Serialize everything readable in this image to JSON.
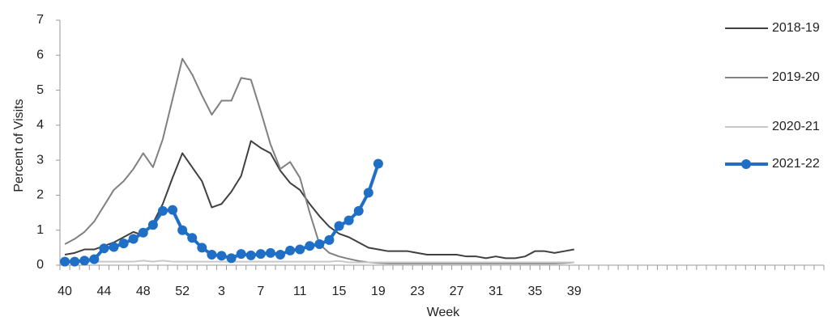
{
  "chart_data": {
    "type": "line",
    "ylabel": "Percent of Visits",
    "xlabel": "Week",
    "categories": [
      "40",
      null,
      null,
      null,
      "44",
      null,
      null,
      null,
      "48",
      null,
      null,
      null,
      "52",
      null,
      null,
      null,
      "3",
      null,
      null,
      null,
      "7",
      null,
      null,
      null,
      "11",
      null,
      null,
      null,
      "15",
      null,
      null,
      null,
      "19",
      null,
      null,
      null,
      "23",
      null,
      null,
      null,
      "27",
      null,
      null,
      null,
      "31",
      null,
      null,
      null,
      "35",
      null,
      null,
      null,
      "39",
      null,
      null,
      null,
      null,
      null,
      null,
      null,
      null,
      null,
      null,
      null,
      null,
      null,
      null,
      null,
      null,
      null,
      null,
      null,
      null,
      null,
      null,
      null,
      null,
      null
    ],
    "ylim": [
      0,
      7
    ],
    "yticks": [
      0,
      1,
      2,
      3,
      4,
      5,
      6,
      7
    ],
    "legend": "right",
    "series": [
      {
        "name": "2018-19",
        "color": "#404040",
        "marker": false,
        "values": [
          0.3,
          0.35,
          0.45,
          0.45,
          0.55,
          0.65,
          0.8,
          0.95,
          0.85,
          1.2,
          1.75,
          2.5,
          3.2,
          2.8,
          2.4,
          1.65,
          1.75,
          2.1,
          2.55,
          3.55,
          3.35,
          3.2,
          2.7,
          2.35,
          2.15,
          1.75,
          1.4,
          1.1,
          0.9,
          0.8,
          0.65,
          0.5,
          0.45,
          0.4,
          0.4,
          0.4,
          0.35,
          0.3,
          0.3,
          0.3,
          0.3,
          0.25,
          0.25,
          0.2,
          0.25,
          0.2,
          0.2,
          0.25,
          0.4,
          0.4,
          0.35,
          0.4,
          0.45,
          null,
          null,
          null,
          null,
          null,
          null,
          null,
          null,
          null,
          null,
          null,
          null,
          null,
          null,
          null,
          null,
          null,
          null,
          null,
          null,
          null,
          null,
          null,
          null,
          null
        ]
      },
      {
        "name": "2019-20",
        "color": "#808080",
        "marker": false,
        "values": [
          0.6,
          0.75,
          0.95,
          1.25,
          1.7,
          2.15,
          2.4,
          2.75,
          3.2,
          2.8,
          3.6,
          4.75,
          5.9,
          5.45,
          4.85,
          4.3,
          4.7,
          4.7,
          5.35,
          5.3,
          4.4,
          3.45,
          2.75,
          2.95,
          2.5,
          1.5,
          0.6,
          0.35,
          0.25,
          0.18,
          0.12,
          0.08,
          0.06,
          0.05,
          0.05,
          0.05,
          0.05,
          0.05,
          0.05,
          0.05,
          0.05,
          0.05,
          0.05,
          0.05,
          0.05,
          0.05,
          0.05,
          0.05,
          0.05,
          0.05,
          0.05,
          0.06,
          0.08,
          null,
          null,
          null,
          null,
          null,
          null,
          null,
          null,
          null,
          null,
          null,
          null,
          null,
          null,
          null,
          null,
          null,
          null,
          null,
          null,
          null,
          null,
          null,
          null,
          null
        ]
      },
      {
        "name": "2020-21",
        "color": "#c8c8c8",
        "marker": false,
        "values": [
          0.1,
          0.1,
          0.1,
          0.1,
          0.1,
          0.1,
          0.1,
          0.1,
          0.13,
          0.1,
          0.13,
          0.1,
          0.1,
          0.1,
          0.1,
          0.1,
          0.1,
          0.1,
          0.1,
          0.1,
          0.1,
          0.1,
          0.1,
          0.1,
          0.1,
          0.1,
          0.1,
          0.1,
          0.12,
          0.08,
          0.08,
          0.08,
          0.08,
          0.08,
          0.08,
          0.08,
          0.08,
          0.08,
          0.08,
          0.08,
          0.08,
          0.08,
          0.08,
          0.08,
          0.08,
          0.08,
          0.08,
          0.08,
          0.08,
          0.08,
          0.08,
          0.08,
          0.08,
          null,
          null,
          null,
          null,
          null,
          null,
          null,
          null,
          null,
          null,
          null,
          null,
          null,
          null,
          null,
          null,
          null,
          null,
          null,
          null,
          null,
          null,
          null,
          null,
          null
        ]
      },
      {
        "name": "2021-22",
        "color": "#1f6fc6",
        "marker": true,
        "values": [
          0.1,
          0.1,
          0.13,
          0.17,
          0.48,
          0.52,
          0.62,
          0.75,
          0.93,
          1.15,
          1.55,
          1.58,
          1.0,
          0.78,
          0.5,
          0.3,
          0.27,
          0.2,
          0.32,
          0.28,
          0.32,
          0.35,
          0.3,
          0.42,
          0.45,
          0.55,
          0.6,
          0.72,
          1.12,
          1.28,
          1.55,
          2.07,
          2.9,
          null,
          null,
          null,
          null,
          null,
          null,
          null,
          null,
          null,
          null,
          null,
          null,
          null,
          null,
          null,
          null,
          null,
          null,
          null,
          null,
          null,
          null,
          null,
          null,
          null,
          null,
          null,
          null,
          null,
          null,
          null,
          null,
          null,
          null,
          null,
          null,
          null,
          null,
          null,
          null,
          null,
          null,
          null,
          null,
          null
        ]
      }
    ]
  }
}
